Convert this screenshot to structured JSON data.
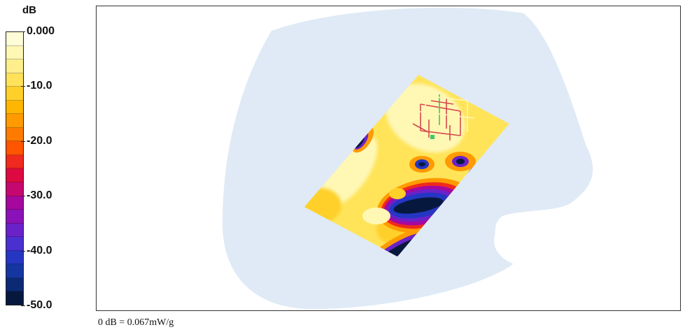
{
  "legend": {
    "unit": "dB",
    "ticks": [
      "0.000",
      "-10.0",
      "-20.0",
      "-30.0",
      "-40.0",
      "-50.0"
    ],
    "tick_values": [
      0,
      -10,
      -20,
      -30,
      -40,
      -50
    ],
    "range": [
      -50,
      0
    ],
    "colors": [
      "#fffcd8",
      "#fff7b4",
      "#ffef8c",
      "#ffe25a",
      "#ffd02a",
      "#ffb600",
      "#ff9a00",
      "#ff7b00",
      "#ff5400",
      "#f02a1e",
      "#dc0a40",
      "#c40870",
      "#a6089e",
      "#8b12b8",
      "#6a22c8",
      "#4a30d0",
      "#2436c2",
      "#1536a0",
      "#0c2a74",
      "#07183f"
    ]
  },
  "reference": {
    "text": "0 dB = 0.067mW/g"
  },
  "scene": {
    "phantom_color": "#dfeaf6",
    "colors": {
      "scan_area_base": "#ffe45a",
      "hot_pale": "#fff7b4",
      "hot_mid": "#ffd02a",
      "orange": "#ff9a00",
      "red": "#f02a1e",
      "magenta": "#a6089e",
      "purple": "#6a22c8",
      "blue": "#2436c2",
      "dark": "#07183f",
      "device_wire": "#d5484c",
      "device_wire_green": "#3cc86a"
    }
  }
}
